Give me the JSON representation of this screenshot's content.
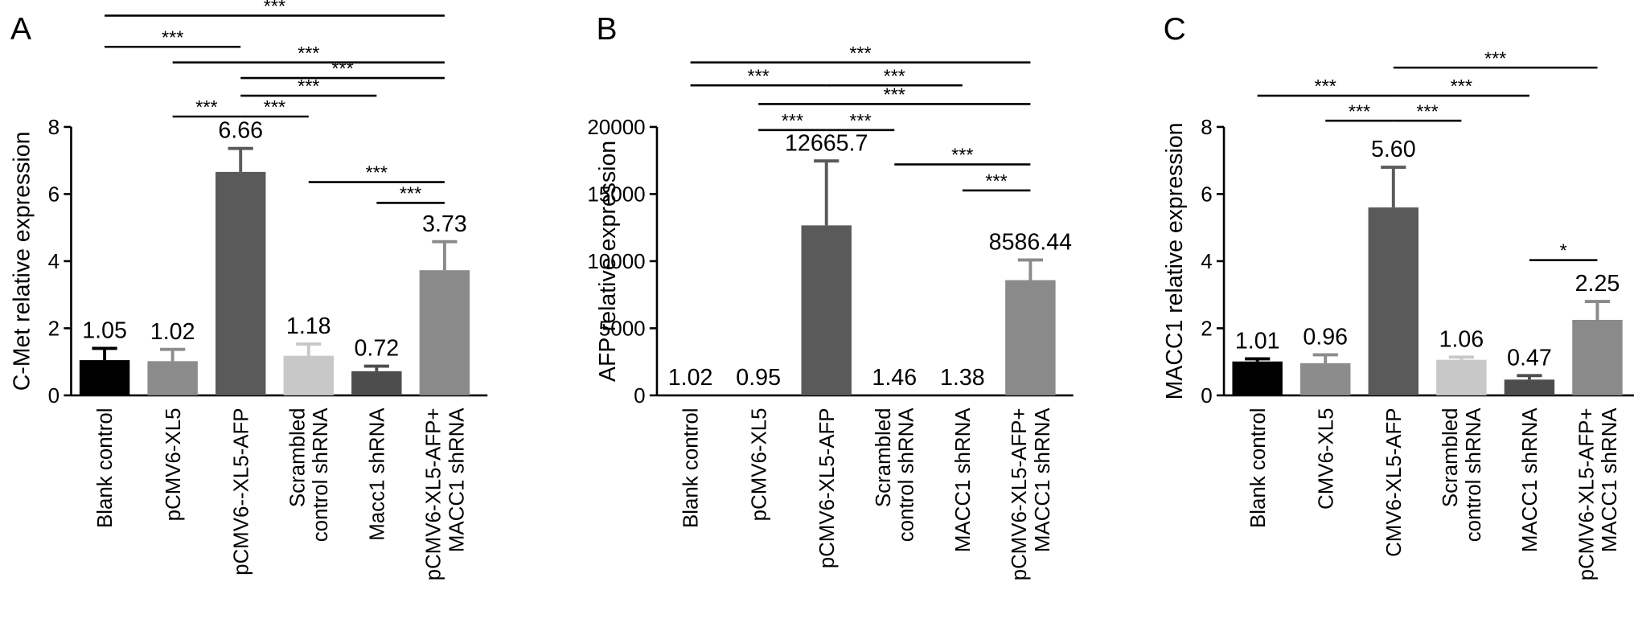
{
  "chart_data": [
    {
      "type": "bar",
      "panel": "A",
      "y_label": "C-Met relative expression",
      "categories": [
        "Blank control",
        "pCMV6-XL5",
        "pCMV6--XL5-AFP",
        "Scrambled\ncontrol shRNA",
        "Macc1 shRNA",
        "pCMV6-XL5-AFP+\nMACC1 shRNA"
      ],
      "values": [
        1.05,
        1.02,
        6.66,
        1.18,
        0.72,
        3.73
      ],
      "value_labels": [
        "1.05",
        "1.02",
        "6.66",
        "1.18",
        "0.72",
        "3.73"
      ],
      "errors": [
        0.35,
        0.35,
        0.7,
        0.35,
        0.15,
        0.85
      ],
      "colors": [
        "#000000",
        "#8c8c8c",
        "#5a5a5a",
        "#c8c8c8",
        "#4d4d4d",
        "#8a8a8a"
      ],
      "ylim": [
        0,
        8
      ],
      "yticks": [
        0,
        2,
        4,
        6,
        8
      ],
      "brackets": [
        {
          "from": 0,
          "to": 5,
          "label": "***"
        },
        {
          "from": 0,
          "to": 2,
          "label": "***"
        },
        {
          "from": 1,
          "to": 5,
          "label": "***"
        },
        {
          "from": 2,
          "to": 5,
          "label": "***"
        },
        {
          "from": 2,
          "to": 4,
          "label": "***"
        },
        {
          "from": 1,
          "to": 2,
          "label": "***"
        },
        {
          "from": 2,
          "to": 3,
          "label": "***"
        },
        {
          "from": 3,
          "to": 5,
          "label": "***"
        },
        {
          "from": 4,
          "to": 5,
          "label": "***"
        }
      ]
    },
    {
      "type": "bar",
      "panel": "B",
      "y_label": "AFP relative expression",
      "categories": [
        "Blank control",
        "pCMV6-XL5",
        "pCMV6-XL5-AFP",
        "Scrambled\ncontrol shRNA",
        "MACC1 shRNA",
        "pCMV6-XL5-AFP+\nMACC1 shRNA"
      ],
      "values": [
        1.02,
        0.95,
        12665.7,
        1.46,
        1.38,
        8586.44
      ],
      "value_labels": [
        "1.02",
        "0.95",
        "12665.7",
        "1.46",
        "1.38",
        "8586.44"
      ],
      "errors": [
        0,
        0,
        4800,
        0,
        0,
        1500
      ],
      "colors": [
        "#000000",
        "#8c8c8c",
        "#5a5a5a",
        "#c8c8c8",
        "#4d4d4d",
        "#8a8a8a"
      ],
      "ylim": [
        0,
        20000
      ],
      "yticks": [
        0,
        5000,
        10000,
        15000,
        20000
      ],
      "brackets": [
        {
          "from": 0,
          "to": 5,
          "label": "***"
        },
        {
          "from": 0,
          "to": 2,
          "label": "***"
        },
        {
          "from": 2,
          "to": 4,
          "label": "***"
        },
        {
          "from": 1,
          "to": 5,
          "label": "***"
        },
        {
          "from": 1,
          "to": 2,
          "label": "***"
        },
        {
          "from": 2,
          "to": 3,
          "label": "***"
        },
        {
          "from": 3,
          "to": 5,
          "label": "***"
        },
        {
          "from": 4,
          "to": 5,
          "label": "***"
        }
      ]
    },
    {
      "type": "bar",
      "panel": "C",
      "y_label": "MACC1 relative expression",
      "categories": [
        "Blank control",
        "CMV6-XL5",
        "CMV6-XL5-AFP",
        "Scrambled\ncontrol shRNA",
        "MACC1 shRNA",
        "pCMV6-XL5-AFP+\nMACC1 shRNA"
      ],
      "values": [
        1.01,
        0.96,
        5.6,
        1.06,
        0.47,
        2.25
      ],
      "value_labels": [
        "1.01",
        "0.96",
        "5.60",
        "1.06",
        "0.47",
        "2.25"
      ],
      "errors": [
        0.08,
        0.25,
        1.2,
        0.08,
        0.12,
        0.55
      ],
      "colors": [
        "#000000",
        "#8c8c8c",
        "#5a5a5a",
        "#c8c8c8",
        "#4d4d4d",
        "#8a8a8a"
      ],
      "ylim": [
        0,
        8
      ],
      "yticks": [
        0,
        2,
        4,
        6,
        8
      ],
      "brackets": [
        {
          "from": 0,
          "to": 2,
          "label": "***"
        },
        {
          "from": 2,
          "to": 5,
          "label": "***"
        },
        {
          "from": 2,
          "to": 4,
          "label": "***"
        },
        {
          "from": 1,
          "to": 2,
          "label": "***"
        },
        {
          "from": 2,
          "to": 3,
          "label": "***"
        },
        {
          "from": 4,
          "to": 5,
          "label": "*"
        }
      ]
    }
  ]
}
